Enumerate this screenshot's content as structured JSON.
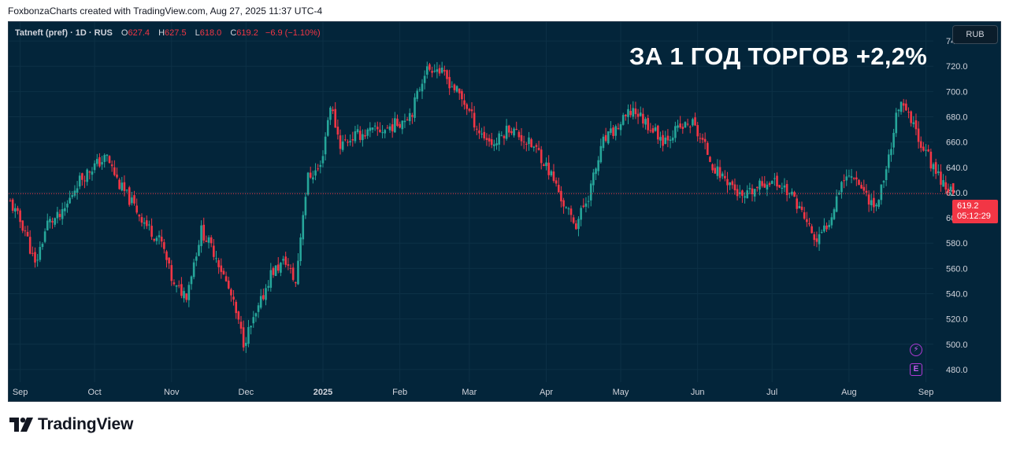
{
  "header": {
    "attribution": "FoxbonzaCharts created with TradingView.com, Aug 27, 2025 11:37 UTC-4"
  },
  "legend": {
    "symbol": "Tatneft (pref) · 1D · RUS",
    "o_label": "O",
    "o_value": "627.4",
    "h_label": "H",
    "h_value": "627.5",
    "l_label": "L",
    "l_value": "618.0",
    "c_label": "C",
    "c_value": "619.2",
    "change": "−6.9 (−1.10%)"
  },
  "headline": "ЗА 1 ГОД ТОРГОВ +2,2%",
  "currency": "RUB",
  "last_price": {
    "value": "619.2",
    "countdown": "05:12:29"
  },
  "events": {
    "dividend_icon": "⚡",
    "earnings_icon": "E"
  },
  "branding": {
    "logo_text": "TradingView"
  },
  "colors": {
    "background": "#03253a",
    "up": "#26a69a",
    "down": "#f23645",
    "axis_text": "#d1d4dc",
    "grid": "#0d3146"
  },
  "chart_data": {
    "type": "candlestick",
    "title": "",
    "xlabel": "",
    "ylabel": "",
    "ylim": [
      470,
      750
    ],
    "y_ticks": [
      740,
      720,
      700,
      680,
      660,
      640,
      620,
      600,
      580,
      560,
      540,
      520,
      500,
      480
    ],
    "x_ticks": [
      {
        "label": "Sep",
        "date": "2024-09-01"
      },
      {
        "label": "Oct",
        "date": "2024-10-01"
      },
      {
        "label": "Nov",
        "date": "2024-11-01"
      },
      {
        "label": "Dec",
        "date": "2024-12-01"
      },
      {
        "label": "2025",
        "date": "2025-01-01"
      },
      {
        "label": "Feb",
        "date": "2025-02-01"
      },
      {
        "label": "Mar",
        "date": "2025-03-01"
      },
      {
        "label": "Apr",
        "date": "2025-04-01"
      },
      {
        "label": "May",
        "date": "2025-05-01"
      },
      {
        "label": "Jun",
        "date": "2025-06-01"
      },
      {
        "label": "Jul",
        "date": "2025-07-01"
      },
      {
        "label": "Aug",
        "date": "2025-08-01"
      },
      {
        "label": "Sep",
        "date": "2025-09-01"
      }
    ],
    "x_range": [
      "2024-08-28",
      "2025-09-04"
    ],
    "last_close": 619.2,
    "close_series": [
      [
        "2024-08-28",
        612
      ],
      [
        "2024-09-03",
        590
      ],
      [
        "2024-09-07",
        562
      ],
      [
        "2024-09-12",
        596
      ],
      [
        "2024-09-18",
        602
      ],
      [
        "2024-09-24",
        628
      ],
      [
        "2024-09-30",
        640
      ],
      [
        "2024-10-06",
        648
      ],
      [
        "2024-10-11",
        626
      ],
      [
        "2024-10-16",
        612
      ],
      [
        "2024-10-22",
        594
      ],
      [
        "2024-10-28",
        580
      ],
      [
        "2024-11-02",
        545
      ],
      [
        "2024-11-07",
        540
      ],
      [
        "2024-11-13",
        590
      ],
      [
        "2024-11-19",
        570
      ],
      [
        "2024-11-25",
        538
      ],
      [
        "2024-11-30",
        502
      ],
      [
        "2024-12-05",
        522
      ],
      [
        "2024-12-11",
        556
      ],
      [
        "2024-12-17",
        566
      ],
      [
        "2024-12-21",
        548
      ],
      [
        "2024-12-24",
        605
      ],
      [
        "2024-12-26",
        632
      ],
      [
        "2024-12-31",
        640
      ],
      [
        "2025-01-04",
        690
      ],
      [
        "2025-01-08",
        658
      ],
      [
        "2025-01-14",
        665
      ],
      [
        "2025-01-20",
        668
      ],
      [
        "2025-01-26",
        670
      ],
      [
        "2025-02-01",
        676
      ],
      [
        "2025-02-06",
        685
      ],
      [
        "2025-02-11",
        716
      ],
      [
        "2025-02-15",
        720
      ],
      [
        "2025-02-19",
        712
      ],
      [
        "2025-02-24",
        700
      ],
      [
        "2025-02-28",
        688
      ],
      [
        "2025-03-05",
        668
      ],
      [
        "2025-03-11",
        658
      ],
      [
        "2025-03-17",
        672
      ],
      [
        "2025-03-23",
        662
      ],
      [
        "2025-03-29",
        652
      ],
      [
        "2025-04-04",
        630
      ],
      [
        "2025-04-09",
        606
      ],
      [
        "2025-04-13",
        595
      ],
      [
        "2025-04-18",
        618
      ],
      [
        "2025-04-24",
        660
      ],
      [
        "2025-04-30",
        672
      ],
      [
        "2025-05-06",
        686
      ],
      [
        "2025-05-12",
        674
      ],
      [
        "2025-05-18",
        662
      ],
      [
        "2025-05-24",
        670
      ],
      [
        "2025-05-30",
        675
      ],
      [
        "2025-06-04",
        656
      ],
      [
        "2025-06-08",
        638
      ],
      [
        "2025-06-14",
        628
      ],
      [
        "2025-06-19",
        614
      ],
      [
        "2025-06-24",
        622
      ],
      [
        "2025-06-30",
        630
      ],
      [
        "2025-07-06",
        624
      ],
      [
        "2025-07-11",
        612
      ],
      [
        "2025-07-16",
        592
      ],
      [
        "2025-07-19",
        580
      ],
      [
        "2025-07-24",
        598
      ],
      [
        "2025-07-29",
        630
      ],
      [
        "2025-08-03",
        635
      ],
      [
        "2025-08-08",
        618
      ],
      [
        "2025-08-12",
        608
      ],
      [
        "2025-08-17",
        648
      ],
      [
        "2025-08-21",
        690
      ],
      [
        "2025-08-25",
        680
      ],
      [
        "2025-08-30",
        660
      ],
      [
        "2025-09-04",
        640
      ],
      [
        "2025-09-08",
        628
      ],
      [
        "2025-09-12",
        619.2
      ]
    ]
  }
}
